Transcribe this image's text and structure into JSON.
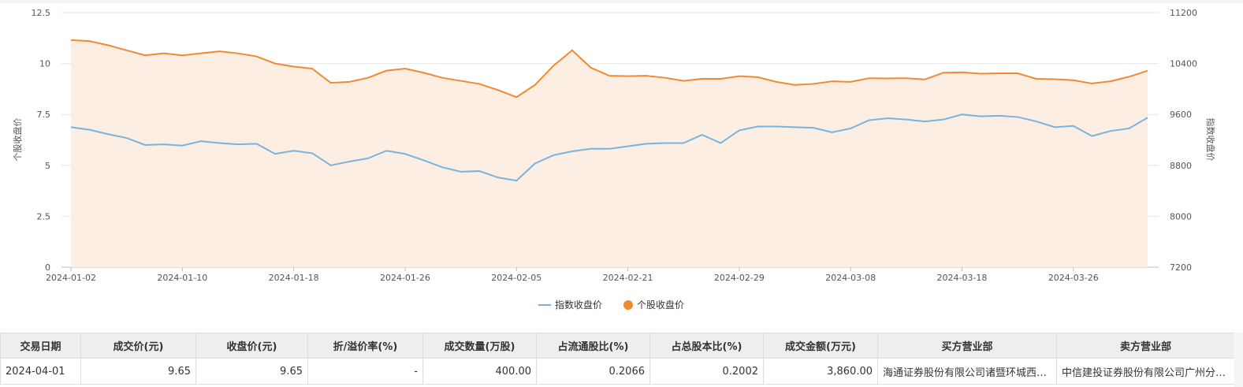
{
  "chart_data": {
    "type": "line",
    "x": [
      "2024-01-02",
      "2024-01-03",
      "2024-01-04",
      "2024-01-05",
      "2024-01-08",
      "2024-01-09",
      "2024-01-10",
      "2024-01-11",
      "2024-01-12",
      "2024-01-15",
      "2024-01-16",
      "2024-01-17",
      "2024-01-18",
      "2024-01-19",
      "2024-01-22",
      "2024-01-23",
      "2024-01-24",
      "2024-01-25",
      "2024-01-26",
      "2024-01-29",
      "2024-01-30",
      "2024-01-31",
      "2024-02-01",
      "2024-02-02",
      "2024-02-05",
      "2024-02-06",
      "2024-02-07",
      "2024-02-08",
      "2024-02-19",
      "2024-02-20",
      "2024-02-21",
      "2024-02-22",
      "2024-02-23",
      "2024-02-26",
      "2024-02-27",
      "2024-02-28",
      "2024-02-29",
      "2024-03-01",
      "2024-03-04",
      "2024-03-05",
      "2024-03-06",
      "2024-03-07",
      "2024-03-08",
      "2024-03-11",
      "2024-03-12",
      "2024-03-13",
      "2024-03-14",
      "2024-03-15",
      "2024-03-18",
      "2024-03-19",
      "2024-03-20",
      "2024-03-21",
      "2024-03-22",
      "2024-03-25",
      "2024-03-26",
      "2024-03-27",
      "2024-03-28",
      "2024-03-29",
      "2024-04-01"
    ],
    "x_ticks": [
      "2024-01-02",
      "2024-01-10",
      "2024-01-18",
      "2024-01-26",
      "2024-02-05",
      "2024-02-21",
      "2024-02-29",
      "2024-03-08",
      "2024-03-18",
      "2024-03-26"
    ],
    "series": [
      {
        "name": "指数收盘价",
        "axis": "right",
        "color": "#7ab3dc",
        "values": [
          9400,
          9360,
          9290,
          9230,
          9120,
          9130,
          9110,
          9180,
          9150,
          9130,
          9140,
          8980,
          9030,
          8990,
          8800,
          8860,
          8910,
          9030,
          8980,
          8880,
          8770,
          8700,
          8710,
          8610,
          8560,
          8830,
          8960,
          9020,
          9060,
          9060,
          9100,
          9140,
          9150,
          9150,
          9280,
          9150,
          9350,
          9410,
          9410,
          9400,
          9390,
          9320,
          9380,
          9510,
          9540,
          9520,
          9490,
          9520,
          9600,
          9570,
          9580,
          9560,
          9490,
          9400,
          9420,
          9260,
          9340,
          9380,
          9550
        ]
      },
      {
        "name": "个股收盘价",
        "axis": "left",
        "color": "#f08a30",
        "area_color": "#fdeee3",
        "values": [
          11.15,
          11.1,
          10.9,
          10.65,
          10.4,
          10.5,
          10.4,
          10.5,
          10.6,
          10.5,
          10.35,
          10.0,
          9.85,
          9.75,
          9.05,
          9.1,
          9.3,
          9.65,
          9.75,
          9.55,
          9.3,
          9.15,
          9.0,
          8.7,
          8.35,
          8.95,
          9.9,
          10.65,
          9.8,
          9.4,
          9.38,
          9.4,
          9.3,
          9.15,
          9.25,
          9.25,
          9.38,
          9.33,
          9.1,
          8.95,
          9.0,
          9.13,
          9.1,
          9.28,
          9.27,
          9.28,
          9.22,
          9.55,
          9.57,
          9.5,
          9.52,
          9.52,
          9.25,
          9.23,
          9.18,
          9.02,
          9.13,
          9.35,
          9.65
        ]
      }
    ],
    "y_left": {
      "label": "个股收盘价",
      "ticks": [
        "0",
        "2.5",
        "5",
        "7.5",
        "10",
        "12.5"
      ],
      "ylim": [
        0,
        12.5
      ]
    },
    "y_right": {
      "label": "指数收盘价",
      "ticks": [
        "7200",
        "8000",
        "8800",
        "9600",
        "10400",
        "11200"
      ],
      "ylim": [
        7200,
        11200
      ]
    },
    "grid": true,
    "legend": "bottom-center"
  },
  "table": {
    "headers": [
      "交易日期",
      "成交价(元)",
      "收盘价(元)",
      "折/溢价率(%)",
      "成交数量(万股)",
      "占流通股比(%)",
      "占总股本比(%)",
      "成交金额(万元)",
      "买方营业部",
      "卖方营业部"
    ],
    "rows": [
      [
        "2024-04-01",
        "9.65",
        "9.65",
        "-",
        "400.00",
        "0.2066",
        "0.2002",
        "3,860.00",
        "海通证券股份有限公司诸暨环城西路证券营业部",
        "中信建投证券股份有限公司广州分公司"
      ]
    ]
  }
}
